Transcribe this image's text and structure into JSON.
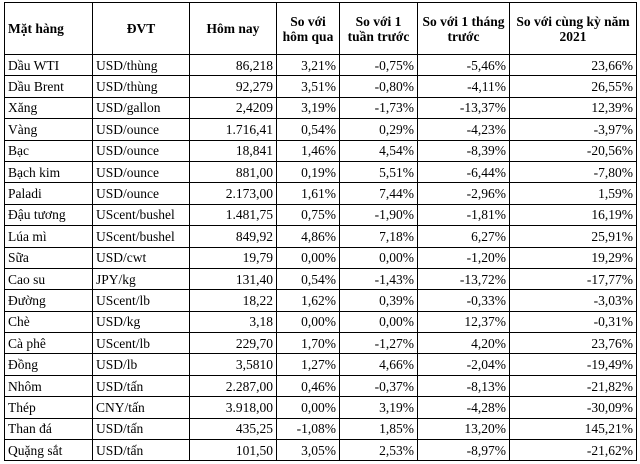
{
  "table": {
    "header": [
      "Mặt hàng",
      "ĐVT",
      "Hôm nay",
      "So với hôm qua",
      "So với 1 tuần trước",
      "So với 1 tháng trước",
      "So với cùng kỳ năm 2021"
    ],
    "rows": [
      [
        "Dầu WTI",
        "USD/thùng",
        "86,218",
        "3,21%",
        "-0,75%",
        "-5,46%",
        "23,66%"
      ],
      [
        "Dầu Brent",
        "USD/thùng",
        "92,279",
        "3,51%",
        "-0,80%",
        "-4,11%",
        "26,55%"
      ],
      [
        "Xăng",
        "USD/gallon",
        "2,4209",
        "3,19%",
        "-1,73%",
        "-13,37%",
        "12,39%"
      ],
      [
        "Vàng",
        "USD/ounce",
        "1.716,41",
        "0,54%",
        "0,29%",
        "-4,23%",
        "-3,97%"
      ],
      [
        "Bạc",
        "USD/ounce",
        "18,841",
        "1,46%",
        "4,54%",
        "-8,39%",
        "-20,56%"
      ],
      [
        "Bạch kim",
        "USD/ounce",
        "881,00",
        "0,19%",
        "5,51%",
        "-6,44%",
        "-7,80%"
      ],
      [
        "Paladi",
        "USD/ounce",
        "2.173,00",
        "1,61%",
        "7,44%",
        "-2,96%",
        "1,59%"
      ],
      [
        "Đậu tương",
        "UScent/bushel",
        "1.481,75",
        "0,75%",
        "-1,90%",
        "-1,81%",
        "16,19%"
      ],
      [
        "Lúa mì",
        "UScent/bushel",
        "849,92",
        "4,86%",
        "7,18%",
        "6,27%",
        "25,91%"
      ],
      [
        "Sữa",
        "USD/cwt",
        "19,79",
        "0,00%",
        "0,00%",
        "-1,20%",
        "19,29%"
      ],
      [
        "Cao su",
        "JPY/kg",
        "131,40",
        "0,54%",
        "-1,43%",
        "-13,72%",
        "-17,77%"
      ],
      [
        "Đường",
        "UScent/lb",
        "18,22",
        "1,62%",
        "0,39%",
        "-0,33%",
        "-3,03%"
      ],
      [
        "Chè",
        "USD/kg",
        "3,18",
        "0,00%",
        "0,00%",
        "12,37%",
        "-0,31%"
      ],
      [
        "Cà phê",
        "UScent/lb",
        "229,70",
        "1,70%",
        "-1,27%",
        "4,20%",
        "23,76%"
      ],
      [
        "Đồng",
        "USD/lb",
        "3,5810",
        "1,27%",
        "4,66%",
        "-2,04%",
        "-19,49%"
      ],
      [
        "Nhôm",
        "USD/tấn",
        "2.287,00",
        "0,46%",
        "-0,37%",
        "-8,13%",
        "-21,82%"
      ],
      [
        "Thép",
        "CNY/tấn",
        "3.918,00",
        "0,00%",
        "3,19%",
        "-4,28%",
        "-30,09%"
      ],
      [
        "Than đá",
        "USD/tấn",
        "435,25",
        "-1,08%",
        "1,85%",
        "13,20%",
        "145,21%"
      ],
      [
        "Quặng sắt",
        "USD/tấn",
        "101,50",
        "3,05%",
        "2,53%",
        "-8,97%",
        "-21,62%"
      ]
    ]
  }
}
